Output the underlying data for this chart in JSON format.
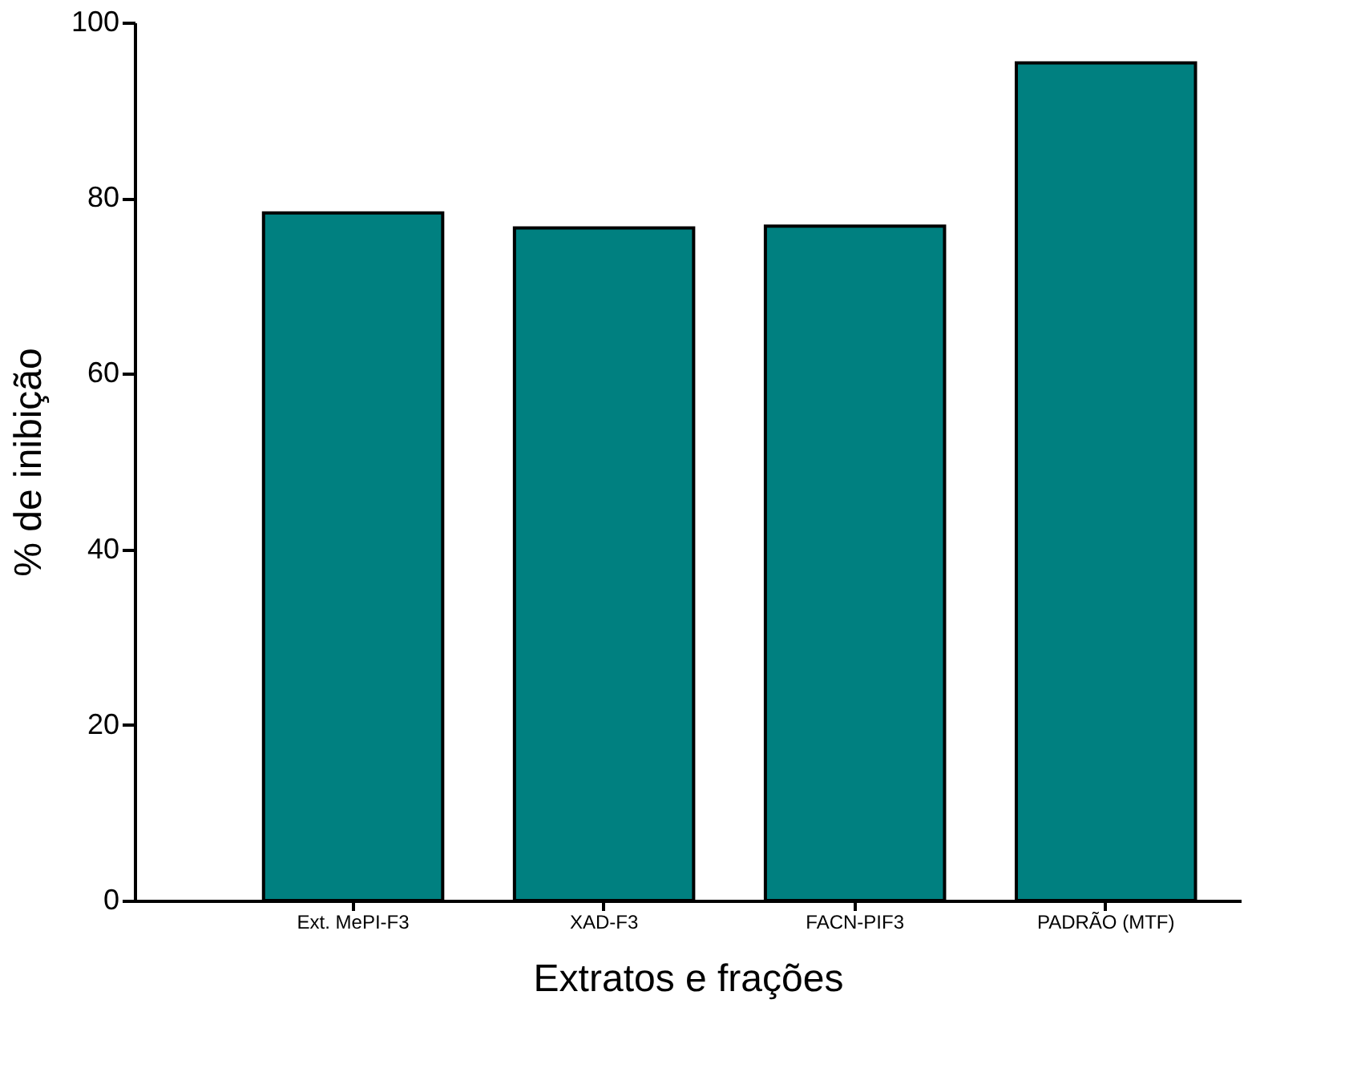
{
  "chart_data": {
    "type": "bar",
    "xlabel": "Extratos e frações",
    "ylabel": "% de inibição",
    "categories": [
      "Ext. MePI-F3",
      "XAD-F3",
      "FACN-PIF3",
      "PADRÃO (MTF)"
    ],
    "values": [
      78.3,
      76.6,
      76.8,
      95.4
    ],
    "color": "#008080",
    "ylim": [
      0,
      100
    ],
    "yticks": [
      0,
      20,
      40,
      60,
      80,
      100
    ],
    "grid": false
  }
}
